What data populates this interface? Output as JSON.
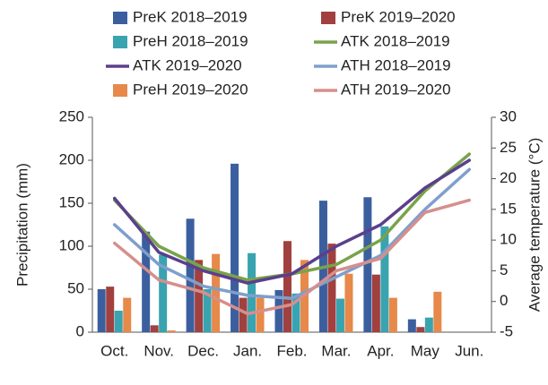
{
  "chart_data": {
    "type": "bar",
    "categories": [
      "Oct.",
      "Nov.",
      "Dec.",
      "Jan.",
      "Feb.",
      "Mar.",
      "Apr.",
      "May",
      "Jun."
    ],
    "ylabel": "Precipitation (mm)",
    "y2label": "Average temperature (°C)",
    "ylim": [
      0,
      250
    ],
    "yticks": [
      0,
      50,
      100,
      150,
      200,
      250
    ],
    "y2lim": [
      -5,
      30
    ],
    "y2ticks": [
      -5,
      0,
      5,
      10,
      15,
      20,
      25,
      30
    ],
    "grid": false,
    "series": [
      {
        "name": "PreK 2018–2019",
        "type": "bar",
        "color": "#3b5f9e",
        "values": [
          50,
          117,
          132,
          196,
          49,
          153,
          157,
          15,
          null
        ]
      },
      {
        "name": "PreK 2019–2020",
        "type": "bar",
        "color": "#a0413f",
        "values": [
          53,
          8,
          84,
          40,
          106,
          103,
          67,
          6,
          null
        ]
      },
      {
        "name": "PreH 2018–2019",
        "type": "bar",
        "color": "#3aa3b0",
        "values": [
          25,
          90,
          50,
          92,
          45,
          39,
          123,
          17,
          null
        ]
      },
      {
        "name": "ATK 2018–2019",
        "type": "line",
        "axis": "y2",
        "color": "#79a34a",
        "values": [
          16.5,
          9,
          5.5,
          3.5,
          4.5,
          6,
          10,
          18,
          24
        ]
      },
      {
        "name": "ATK 2019–2020",
        "type": "line",
        "axis": "y2",
        "color": "#5b3f8c",
        "values": [
          16.8,
          8,
          5,
          3,
          4.5,
          9,
          12.5,
          18.5,
          23
        ]
      },
      {
        "name": "ATH 2018–2019",
        "type": "line",
        "axis": "y2",
        "color": "#7f9fcc",
        "values": [
          12.5,
          6,
          2.5,
          1,
          0.5,
          4,
          7.5,
          15,
          21.5
        ]
      },
      {
        "name": "PreH 2019–2020",
        "type": "bar",
        "color": "#e6894a",
        "values": [
          40,
          2,
          91,
          40,
          84,
          68,
          40,
          47,
          null
        ]
      },
      {
        "name": "ATH 2019–2020",
        "type": "line",
        "axis": "y2",
        "color": "#d58f8c",
        "values": [
          9.5,
          3.5,
          1.5,
          -2,
          -0.5,
          5,
          7,
          14.5,
          16.5
        ]
      }
    ]
  }
}
